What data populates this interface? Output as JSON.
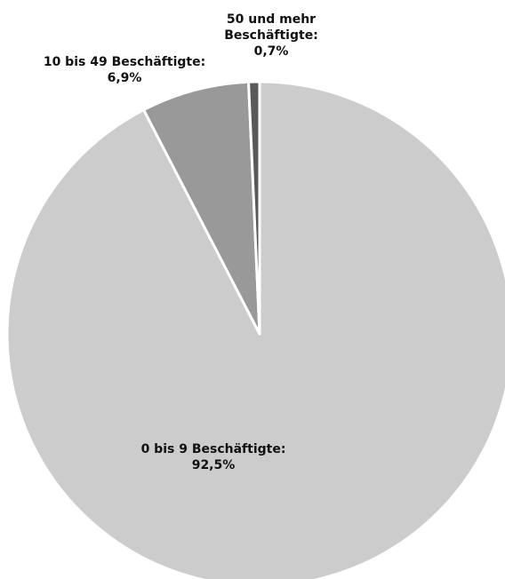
{
  "chart_data": {
    "type": "pie",
    "start_angle_deg": 0,
    "direction": "clockwise",
    "slice_border_color": "#ffffff",
    "slices": [
      {
        "label_lines": [
          "0 bis 9 Beschäftigte:",
          "92,5%"
        ],
        "value": 92.5,
        "color": "#cccccc"
      },
      {
        "label_lines": [
          "10 bis 49 Beschäftigte:",
          "6,9%"
        ],
        "value": 6.9,
        "color": "#999999"
      },
      {
        "label_lines": [
          "50 und mehr",
          "Beschäftigte:",
          "0,7%"
        ],
        "value": 0.7,
        "color": "#595959"
      }
    ]
  }
}
